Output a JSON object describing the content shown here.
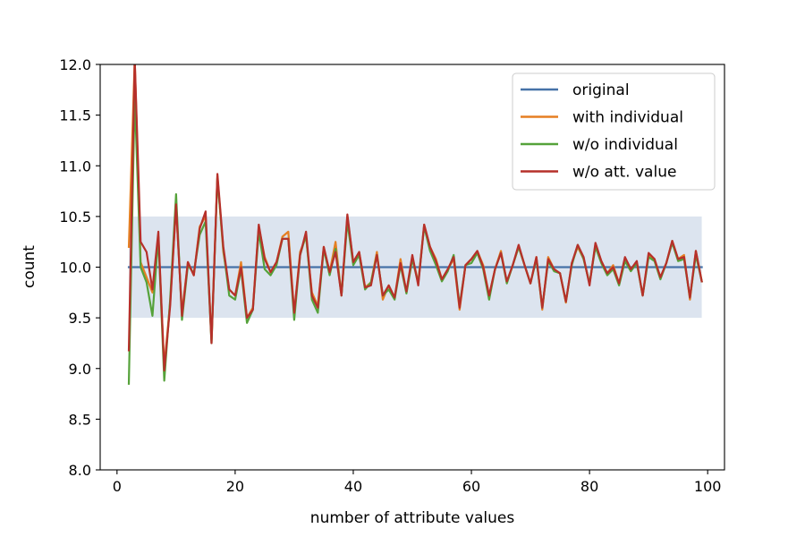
{
  "chart_data": {
    "type": "line",
    "xlabel": "number of attribute values",
    "ylabel": "count",
    "xlim": [
      -2.85,
      102.85
    ],
    "ylim": [
      8.0,
      12.0
    ],
    "xticks": [
      0,
      20,
      40,
      60,
      80,
      100
    ],
    "yticks": [
      "8.0",
      "8.5",
      "9.0",
      "9.5",
      "10.0",
      "10.5",
      "11.0",
      "11.5",
      "12.0"
    ],
    "band": {
      "x": [
        2,
        99
      ],
      "y": [
        9.5,
        10.5
      ],
      "color": "#dce4ef"
    },
    "legend_position": "upper right",
    "x": [
      2,
      3,
      4,
      5,
      6,
      7,
      8,
      9,
      10,
      11,
      12,
      13,
      14,
      15,
      16,
      17,
      18,
      19,
      20,
      21,
      22,
      23,
      24,
      25,
      26,
      27,
      28,
      29,
      30,
      31,
      32,
      33,
      34,
      35,
      36,
      37,
      38,
      39,
      40,
      41,
      42,
      43,
      44,
      45,
      46,
      47,
      48,
      49,
      50,
      51,
      52,
      53,
      54,
      55,
      56,
      57,
      58,
      59,
      60,
      61,
      62,
      63,
      64,
      65,
      66,
      67,
      68,
      69,
      70,
      71,
      72,
      73,
      74,
      75,
      76,
      77,
      78,
      79,
      80,
      81,
      82,
      83,
      84,
      85,
      86,
      87,
      88,
      89,
      90,
      91,
      92,
      93,
      94,
      95,
      96,
      97,
      98,
      99
    ],
    "series": [
      {
        "name": "original",
        "color": "#4672a8",
        "values": [
          10,
          10,
          10,
          10,
          10,
          10,
          10,
          10,
          10,
          10,
          10,
          10,
          10,
          10,
          10,
          10,
          10,
          10,
          10,
          10,
          10,
          10,
          10,
          10,
          10,
          10,
          10,
          10,
          10,
          10,
          10,
          10,
          10,
          10,
          10,
          10,
          10,
          10,
          10,
          10,
          10,
          10,
          10,
          10,
          10,
          10,
          10,
          10,
          10,
          10,
          10,
          10,
          10,
          10,
          10,
          10,
          10,
          10,
          10,
          10,
          10,
          10,
          10,
          10,
          10,
          10,
          10,
          10,
          10,
          10,
          10,
          10,
          10,
          10,
          10,
          10,
          10,
          10,
          10,
          10,
          10,
          10,
          10,
          10,
          10,
          10,
          10,
          10,
          10,
          10,
          10,
          10,
          10,
          10,
          10,
          10,
          10,
          10
        ]
      },
      {
        "name": "with individual",
        "color": "#e57f22",
        "values": [
          10.2,
          12.05,
          10.05,
          9.9,
          9.75,
          10.3,
          9.02,
          9.65,
          10.6,
          9.55,
          10.05,
          9.92,
          10.4,
          10.5,
          9.28,
          10.9,
          10.15,
          9.78,
          9.72,
          10.05,
          9.5,
          9.6,
          10.4,
          10.1,
          9.95,
          10.05,
          10.3,
          10.35,
          9.55,
          10.15,
          10.3,
          9.75,
          9.62,
          10.2,
          9.95,
          10.25,
          9.72,
          10.5,
          10.05,
          10.15,
          9.8,
          9.85,
          10.15,
          9.68,
          9.82,
          9.7,
          10.08,
          9.75,
          10.1,
          9.85,
          10.42,
          10.2,
          10.08,
          9.88,
          9.98,
          10.08,
          9.58,
          10.02,
          10.08,
          10.16,
          10.02,
          9.72,
          9.98,
          10.16,
          9.85,
          10.02,
          10.2,
          10.02,
          9.84,
          10.1,
          9.58,
          10.1,
          9.98,
          9.94,
          9.65,
          10.04,
          10.2,
          10.08,
          9.84,
          10.22,
          10.06,
          9.94,
          10.02,
          9.84,
          10.08,
          9.98,
          10.04,
          9.72,
          10.12,
          10.08,
          9.9,
          10.04,
          10.26,
          10.08,
          10.12,
          9.68,
          10.16,
          9.86
        ]
      },
      {
        "name": "w/o individual",
        "color": "#55a23a",
        "values": [
          8.85,
          11.7,
          10.0,
          9.85,
          9.52,
          10.3,
          8.88,
          9.68,
          10.72,
          9.48,
          10.02,
          9.94,
          10.32,
          10.45,
          9.25,
          10.88,
          10.18,
          9.72,
          9.68,
          9.98,
          9.45,
          9.58,
          10.35,
          9.98,
          9.92,
          10.02,
          10.28,
          10.28,
          9.48,
          10.12,
          10.32,
          9.68,
          9.55,
          10.18,
          9.92,
          10.18,
          9.72,
          10.45,
          10.02,
          10.12,
          9.78,
          9.85,
          10.12,
          9.72,
          9.78,
          9.68,
          10.02,
          9.74,
          10.08,
          9.84,
          10.4,
          10.16,
          10.02,
          9.86,
          9.96,
          10.12,
          9.62,
          10.02,
          10.04,
          10.14,
          9.98,
          9.68,
          9.98,
          10.14,
          9.84,
          10.02,
          10.2,
          10.02,
          9.84,
          10.08,
          9.6,
          10.06,
          9.96,
          9.94,
          9.66,
          10.02,
          10.22,
          10.08,
          9.84,
          10.2,
          10.04,
          9.92,
          9.98,
          9.82,
          10.06,
          9.96,
          10.04,
          9.72,
          10.1,
          10.06,
          9.88,
          10.04,
          10.24,
          10.06,
          10.08,
          9.7,
          10.12,
          9.86
        ]
      },
      {
        "name": "w/o att. value",
        "color": "#b6302a",
        "values": [
          9.18,
          12.05,
          10.25,
          10.15,
          9.78,
          10.35,
          8.98,
          9.62,
          10.62,
          9.52,
          10.05,
          9.92,
          10.38,
          10.55,
          9.25,
          10.92,
          10.2,
          9.78,
          9.72,
          10.0,
          9.5,
          9.58,
          10.42,
          10.08,
          9.95,
          10.05,
          10.28,
          10.28,
          9.55,
          10.12,
          10.35,
          9.72,
          9.6,
          10.2,
          9.95,
          10.15,
          9.72,
          10.52,
          10.05,
          10.15,
          9.8,
          9.82,
          10.12,
          9.72,
          9.82,
          9.7,
          10.04,
          9.76,
          10.12,
          9.82,
          10.42,
          10.2,
          10.06,
          9.88,
          9.98,
          10.1,
          9.6,
          10.02,
          10.08,
          10.16,
          10.0,
          9.72,
          9.98,
          10.14,
          9.86,
          10.02,
          10.22,
          10.02,
          9.84,
          10.1,
          9.6,
          10.08,
          9.98,
          9.94,
          9.66,
          10.04,
          10.22,
          10.1,
          9.82,
          10.24,
          10.06,
          9.94,
          10.0,
          9.84,
          10.1,
          9.98,
          10.06,
          9.72,
          10.14,
          10.08,
          9.9,
          10.04,
          10.26,
          10.08,
          10.1,
          9.7,
          10.16,
          9.86
        ]
      }
    ]
  }
}
